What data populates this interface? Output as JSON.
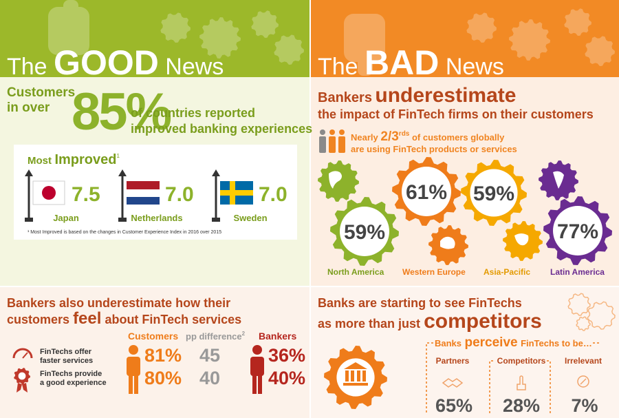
{
  "good_news": {
    "header": {
      "the": "The",
      "word": "GOOD",
      "news": "News"
    },
    "headline": {
      "lead_1": "Customers",
      "lead_2": "in over",
      "figure": "85%",
      "text_1": "of countries reported",
      "text_2": "improved banking experiences"
    },
    "most_improved": {
      "title_prefix": "Most",
      "title_word": "Improved",
      "footnote_mark": "1",
      "countries": [
        {
          "name": "Japan",
          "score": "7.5"
        },
        {
          "name": "Netherlands",
          "score": "7.0"
        },
        {
          "name": "Sweden",
          "score": "7.0"
        }
      ],
      "footnote": "¹ Most Improved is based on the changes in Customer Experience Index in 2016 over 2015"
    }
  },
  "bad_news": {
    "header": {
      "the": "The",
      "word": "BAD",
      "news": "News"
    },
    "headline": {
      "lead": "Bankers",
      "emphasis": "underestimate",
      "text": "the impact of FinTech firms on their customers"
    },
    "usage": {
      "prefix": "Nearly",
      "fraction": "2/3",
      "fraction_sup": "rds",
      "text_1": "of customers globally",
      "text_2": "are using FinTech products or services"
    },
    "regions": [
      {
        "name": "North America",
        "share": "59%"
      },
      {
        "name": "Western Europe",
        "share": "61%"
      },
      {
        "name": "Asia-Pacific",
        "share": "59%"
      },
      {
        "name": "Latin America",
        "share": "77%"
      }
    ]
  },
  "customer_feelings": {
    "title_1": "Bankers also underestimate how their",
    "title_2a": "customers",
    "title_2b": "feel",
    "title_2c": "about FinTech services",
    "columns": {
      "customers": "Customers",
      "difference": "pp difference",
      "difference_note": "2",
      "bankers": "Bankers"
    },
    "rows": [
      {
        "label_1": "FinTechs offer",
        "label_2": "faster services",
        "customers": "81%",
        "difference": "45",
        "bankers": "36%"
      },
      {
        "label_1": "FinTechs provide",
        "label_2": "a good experience",
        "customers": "80%",
        "difference": "40",
        "bankers": "40%"
      }
    ]
  },
  "perceptions": {
    "title_1": "Banks are starting to see FinTechs",
    "title_2a": "as more than just",
    "title_2b": "competitors",
    "subtitle_a": "Banks",
    "subtitle_b": "perceive",
    "subtitle_c": "FinTechs to be…",
    "options": [
      {
        "label": "Partners",
        "share": "65%"
      },
      {
        "label": "Competitors",
        "share": "28%"
      },
      {
        "label": "Irrelevant",
        "share": "7%"
      }
    ]
  }
}
